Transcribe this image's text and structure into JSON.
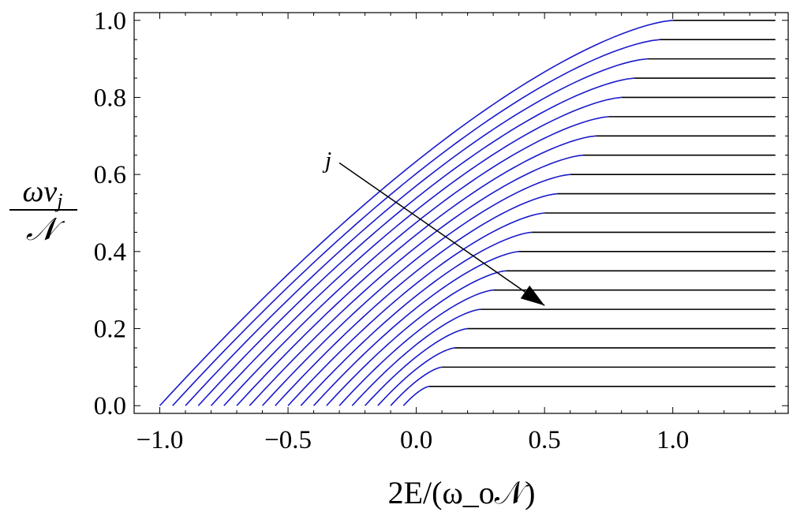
{
  "chart_data": {
    "type": "line",
    "xlabel": "2E/(ω_o𝒩)",
    "ylabel": "ων_j / 𝒩",
    "xlim": [
      -1.1,
      1.45
    ],
    "ylim": [
      -0.02,
      1.02
    ],
    "x_ticks": [
      {
        "value": -1.0,
        "label": "−1.0"
      },
      {
        "value": -0.5,
        "label": "−0.5"
      },
      {
        "value": 0.0,
        "label": "0.0"
      },
      {
        "value": 0.5,
        "label": "0.5"
      },
      {
        "value": 1.0,
        "label": "1.0"
      }
    ],
    "y_ticks": [
      {
        "value": 0.0,
        "label": "0.0"
      },
      {
        "value": 0.2,
        "label": "0.2"
      },
      {
        "value": 0.4,
        "label": "0.4"
      },
      {
        "value": 0.6,
        "label": "0.6"
      },
      {
        "value": 0.8,
        "label": "0.8"
      },
      {
        "value": 1.0,
        "label": "1.0"
      }
    ],
    "grid": false,
    "curve_color": "#1a1acc",
    "plateau_color": "#000000",
    "series_family": {
      "j_values": [
        1,
        2,
        3,
        4,
        5,
        6,
        7,
        8,
        9,
        10,
        11,
        12,
        13,
        14,
        15,
        16,
        17,
        18,
        19,
        20
      ],
      "curve_start_x": [
        -1.0,
        -0.95,
        -0.9,
        -0.85,
        -0.8,
        -0.75,
        -0.7,
        -0.65,
        -0.6,
        -0.55,
        -0.5,
        -0.45,
        -0.4,
        -0.35,
        -0.3,
        -0.25,
        -0.2,
        -0.15,
        -0.1,
        -0.05
      ],
      "curve_start_y": 0.0,
      "knee_x": [
        1.0,
        0.95,
        0.9,
        0.85,
        0.8,
        0.75,
        0.7,
        0.65,
        0.6,
        0.55,
        0.5,
        0.45,
        0.4,
        0.35,
        0.3,
        0.25,
        0.2,
        0.15,
        0.1,
        0.05
      ],
      "plateau_y": [
        1.0,
        0.95,
        0.9,
        0.85,
        0.8,
        0.75,
        0.7,
        0.65,
        0.6,
        0.55,
        0.5,
        0.45,
        0.4,
        0.35,
        0.3,
        0.25,
        0.2,
        0.15,
        0.1,
        0.05
      ],
      "plateau_end_x": 1.4
    },
    "annotation": {
      "text": "j",
      "arrow_from": [
        -0.3,
        0.63
      ],
      "arrow_to": [
        0.5,
        0.26
      ]
    }
  }
}
